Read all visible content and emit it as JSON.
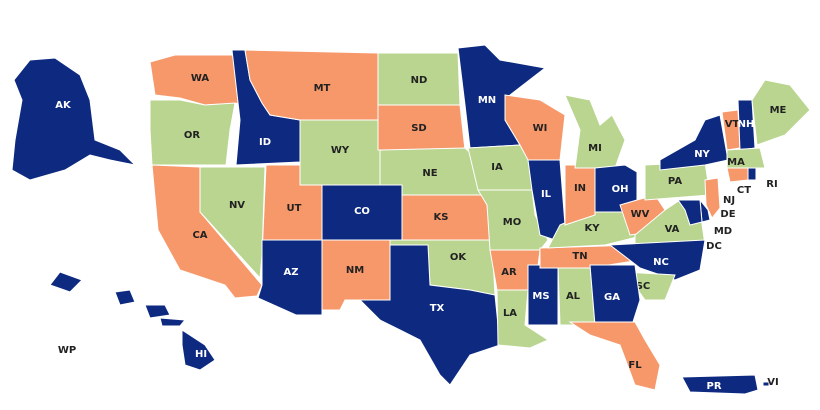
{
  "regions": [
    {
      "label": "AK",
      "fill": "#0d2a80"
    },
    {
      "label": "HI",
      "fill": "#0d2a80"
    },
    {
      "label": "WA",
      "fill": "#f7986a"
    },
    {
      "label": "OR",
      "fill": "#b9d58f"
    },
    {
      "label": "CA",
      "fill": "#f7986a"
    },
    {
      "label": "NV",
      "fill": "#b9d58f"
    },
    {
      "label": "ID",
      "fill": "#0d2a80"
    },
    {
      "label": "MT",
      "fill": "#f7986a"
    },
    {
      "label": "WY",
      "fill": "#b9d58f"
    },
    {
      "label": "UT",
      "fill": "#f7986a"
    },
    {
      "label": "AZ",
      "fill": "#0d2a80"
    },
    {
      "label": "CO",
      "fill": "#0d2a80"
    },
    {
      "label": "NM",
      "fill": "#f7986a"
    },
    {
      "label": "ND",
      "fill": "#b9d58f"
    },
    {
      "label": "SD",
      "fill": "#f7986a"
    },
    {
      "label": "NE",
      "fill": "#b9d58f"
    },
    {
      "label": "KS",
      "fill": "#f7986a"
    },
    {
      "label": "OK",
      "fill": "#b9d58f"
    },
    {
      "label": "TX",
      "fill": "#0d2a80"
    },
    {
      "label": "MN",
      "fill": "#0d2a80"
    },
    {
      "label": "IA",
      "fill": "#b9d58f"
    },
    {
      "label": "MO",
      "fill": "#b9d58f"
    },
    {
      "label": "AR",
      "fill": "#f7986a"
    },
    {
      "label": "LA",
      "fill": "#b9d58f"
    },
    {
      "label": "WI",
      "fill": "#f7986a"
    },
    {
      "label": "IL",
      "fill": "#0d2a80"
    },
    {
      "label": "MS",
      "fill": "#0d2a80"
    },
    {
      "label": "AL",
      "fill": "#b9d58f"
    },
    {
      "label": "TN",
      "fill": "#f7986a"
    },
    {
      "label": "KY",
      "fill": "#b9d58f"
    },
    {
      "label": "IN",
      "fill": "#f7986a"
    },
    {
      "label": "MI",
      "fill": "#b9d58f"
    },
    {
      "label": "OH",
      "fill": "#0d2a80"
    },
    {
      "label": "WV",
      "fill": "#f7986a"
    },
    {
      "label": "VA",
      "fill": "#b9d58f"
    },
    {
      "label": "NC",
      "fill": "#0d2a80"
    },
    {
      "label": "SC",
      "fill": "#b9d58f"
    },
    {
      "label": "GA",
      "fill": "#0d2a80"
    },
    {
      "label": "FL",
      "fill": "#f7986a"
    },
    {
      "label": "PA",
      "fill": "#b9d58f"
    },
    {
      "label": "NY",
      "fill": "#0d2a80"
    },
    {
      "label": "VT",
      "fill": "#f7986a"
    },
    {
      "label": "NH",
      "fill": "#0d2a80"
    },
    {
      "label": "ME",
      "fill": "#b9d58f"
    },
    {
      "label": "MA",
      "fill": "#b9d58f"
    },
    {
      "label": "CT",
      "fill": "#f7986a"
    },
    {
      "label": "RI",
      "fill": "#0d2a80"
    },
    {
      "label": "NJ",
      "fill": "#f7986a"
    },
    {
      "label": "DE",
      "fill": "#0d2a80"
    },
    {
      "label": "MD",
      "fill": "#0d2a80"
    },
    {
      "label": "DC"
    },
    {
      "label": "PR",
      "fill": "#0d2a80"
    },
    {
      "label": "VI",
      "fill": "#0d2a80"
    },
    {
      "label": "WP"
    }
  ]
}
